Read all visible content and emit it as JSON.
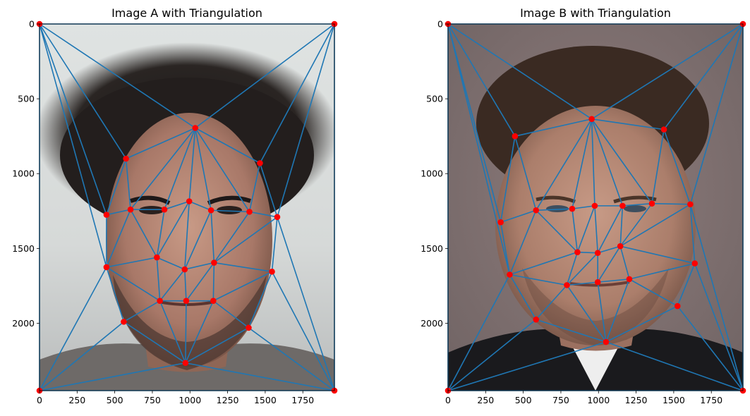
{
  "chart_data": [
    {
      "type": "scatter",
      "title": "Image A with Triangulation",
      "image_description": "photo of a young man with dark curly hair, grey t-shirt, white wall background",
      "xlim": [
        0,
        1960
      ],
      "ylim": [
        2450,
        0
      ],
      "xticks": [
        0,
        250,
        500,
        750,
        1000,
        1250,
        1500,
        1750
      ],
      "yticks": [
        0,
        500,
        1000,
        1500,
        2000
      ],
      "line_color": "#1f77b4",
      "marker_color": "#ff0000",
      "points": [
        [
          0,
          0
        ],
        [
          1960,
          0
        ],
        [
          0,
          2450
        ],
        [
          1960,
          2450
        ],
        [
          1035,
          695
        ],
        [
          575,
          900
        ],
        [
          1465,
          930
        ],
        [
          445,
          1275
        ],
        [
          605,
          1240
        ],
        [
          830,
          1240
        ],
        [
          995,
          1185
        ],
        [
          1140,
          1245
        ],
        [
          1395,
          1255
        ],
        [
          1580,
          1290
        ],
        [
          780,
          1560
        ],
        [
          965,
          1640
        ],
        [
          1160,
          1595
        ],
        [
          445,
          1625
        ],
        [
          1545,
          1655
        ],
        [
          800,
          1850
        ],
        [
          975,
          1850
        ],
        [
          1155,
          1850
        ],
        [
          560,
          1990
        ],
        [
          1390,
          2030
        ],
        [
          970,
          2265
        ]
      ],
      "triangles": [
        [
          0,
          4,
          5
        ],
        [
          0,
          1,
          4
        ],
        [
          1,
          4,
          6
        ],
        [
          0,
          5,
          7
        ],
        [
          0,
          7,
          17
        ],
        [
          0,
          17,
          2
        ],
        [
          2,
          17,
          22
        ],
        [
          2,
          22,
          24
        ],
        [
          2,
          24,
          3
        ],
        [
          3,
          24,
          23
        ],
        [
          3,
          23,
          18
        ],
        [
          3,
          18,
          13
        ],
        [
          1,
          13,
          3
        ],
        [
          1,
          6,
          13
        ],
        [
          4,
          5,
          8
        ],
        [
          4,
          8,
          9
        ],
        [
          4,
          9,
          10
        ],
        [
          4,
          10,
          11
        ],
        [
          4,
          11,
          12
        ],
        [
          4,
          12,
          6
        ],
        [
          5,
          7,
          8
        ],
        [
          6,
          12,
          13
        ],
        [
          7,
          8,
          17
        ],
        [
          8,
          9,
          14
        ],
        [
          8,
          14,
          17
        ],
        [
          9,
          10,
          14
        ],
        [
          10,
          14,
          15
        ],
        [
          10,
          11,
          15
        ],
        [
          11,
          15,
          16
        ],
        [
          11,
          12,
          16
        ],
        [
          12,
          13,
          16
        ],
        [
          13,
          16,
          18
        ],
        [
          14,
          15,
          19
        ],
        [
          14,
          17,
          19
        ],
        [
          15,
          19,
          20
        ],
        [
          15,
          16,
          20
        ],
        [
          16,
          20,
          21
        ],
        [
          16,
          18,
          21
        ],
        [
          17,
          19,
          22
        ],
        [
          19,
          20,
          24
        ],
        [
          19,
          22,
          24
        ],
        [
          20,
          21,
          24
        ],
        [
          21,
          23,
          24
        ],
        [
          18,
          21,
          23
        ]
      ]
    },
    {
      "type": "scatter",
      "title": "Image B with Triangulation",
      "image_description": "portrait of a man with slicked-back hair, black suit and white shirt, mauve background",
      "xlim": [
        0,
        1960
      ],
      "ylim": [
        2450,
        0
      ],
      "xticks": [
        0,
        250,
        500,
        750,
        1000,
        1250,
        1500,
        1750
      ],
      "yticks": [
        0,
        500,
        1000,
        1500,
        2000
      ],
      "line_color": "#1f77b4",
      "marker_color": "#ff0000",
      "points": [
        [
          0,
          0
        ],
        [
          1960,
          0
        ],
        [
          0,
          2450
        ],
        [
          1960,
          2450
        ],
        [
          955,
          635
        ],
        [
          445,
          750
        ],
        [
          1435,
          705
        ],
        [
          350,
          1325
        ],
        [
          585,
          1245
        ],
        [
          825,
          1235
        ],
        [
          975,
          1215
        ],
        [
          1160,
          1215
        ],
        [
          1355,
          1200
        ],
        [
          1610,
          1205
        ],
        [
          860,
          1525
        ],
        [
          995,
          1530
        ],
        [
          1145,
          1485
        ],
        [
          410,
          1675
        ],
        [
          1640,
          1600
        ],
        [
          790,
          1745
        ],
        [
          995,
          1725
        ],
        [
          1205,
          1705
        ],
        [
          585,
          1975
        ],
        [
          1525,
          1885
        ],
        [
          1050,
          2125
        ]
      ],
      "triangles": [
        [
          0,
          4,
          5
        ],
        [
          0,
          1,
          4
        ],
        [
          1,
          4,
          6
        ],
        [
          0,
          5,
          7
        ],
        [
          0,
          7,
          17
        ],
        [
          0,
          17,
          2
        ],
        [
          2,
          17,
          22
        ],
        [
          2,
          22,
          24
        ],
        [
          2,
          24,
          3
        ],
        [
          3,
          24,
          23
        ],
        [
          3,
          23,
          18
        ],
        [
          3,
          18,
          13
        ],
        [
          1,
          13,
          3
        ],
        [
          1,
          6,
          13
        ],
        [
          4,
          5,
          8
        ],
        [
          4,
          8,
          9
        ],
        [
          4,
          9,
          10
        ],
        [
          4,
          10,
          11
        ],
        [
          4,
          11,
          12
        ],
        [
          4,
          12,
          6
        ],
        [
          5,
          7,
          8
        ],
        [
          6,
          12,
          13
        ],
        [
          7,
          8,
          17
        ],
        [
          8,
          9,
          14
        ],
        [
          8,
          14,
          17
        ],
        [
          9,
          10,
          14
        ],
        [
          10,
          14,
          15
        ],
        [
          10,
          11,
          15
        ],
        [
          11,
          15,
          16
        ],
        [
          11,
          12,
          16
        ],
        [
          12,
          13,
          16
        ],
        [
          13,
          16,
          18
        ],
        [
          14,
          15,
          19
        ],
        [
          14,
          17,
          19
        ],
        [
          15,
          19,
          20
        ],
        [
          15,
          16,
          20
        ],
        [
          16,
          20,
          21
        ],
        [
          16,
          18,
          21
        ],
        [
          17,
          19,
          22
        ],
        [
          19,
          20,
          24
        ],
        [
          19,
          22,
          24
        ],
        [
          20,
          21,
          24
        ],
        [
          21,
          23,
          24
        ],
        [
          18,
          21,
          23
        ]
      ]
    }
  ]
}
